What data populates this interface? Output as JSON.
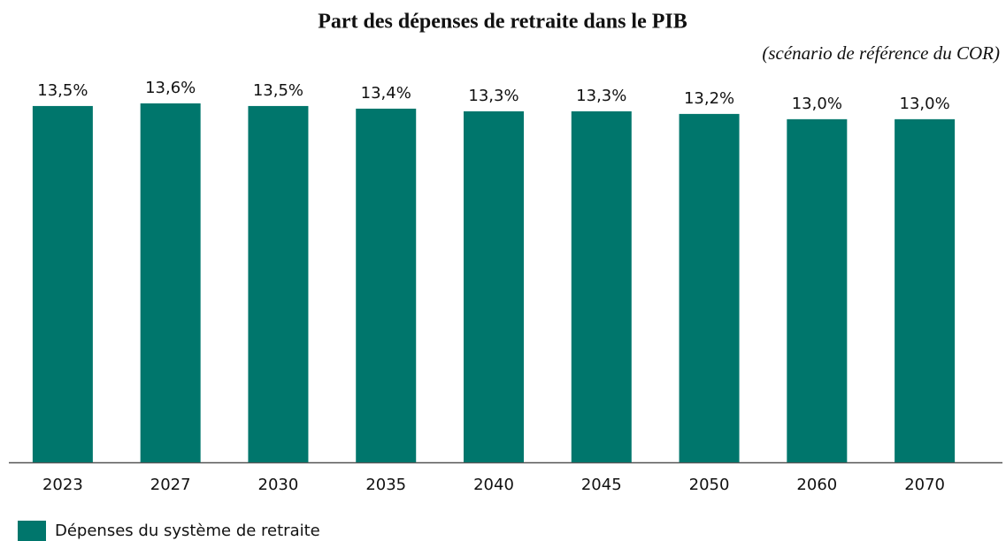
{
  "chart_data": {
    "type": "bar",
    "title": "Part des dépenses de retraite dans le PIB",
    "subtitle": "(scénario de référence du COR)",
    "categories": [
      "2023",
      "2027",
      "2030",
      "2035",
      "2040",
      "2045",
      "2050",
      "2060",
      "2070"
    ],
    "series": [
      {
        "name": "Dépenses du système de retraite",
        "color": "#00766c",
        "values": [
          13.5,
          13.6,
          13.5,
          13.4,
          13.3,
          13.3,
          13.2,
          13.0,
          13.0
        ],
        "value_labels": [
          "13,5%",
          "13,6%",
          "13,5%",
          "13,4%",
          "13,3%",
          "13,3%",
          "13,2%",
          "13,0%",
          "13,0%"
        ]
      }
    ],
    "ylim": [
      0,
      14
    ],
    "legend": "bottom-left"
  }
}
